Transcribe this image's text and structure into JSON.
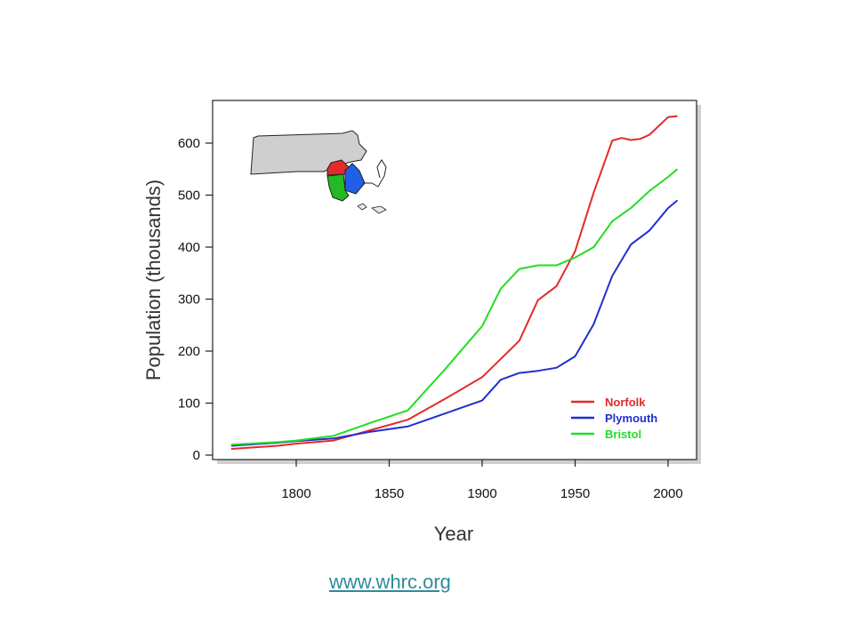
{
  "chart_data": {
    "type": "line",
    "xlabel": "Year",
    "ylabel": "Population (thousands)",
    "xlim": [
      1760,
      2010
    ],
    "ylim": [
      0,
      650
    ],
    "xticks": [
      1800,
      1850,
      1900,
      1950,
      2000
    ],
    "yticks": [
      0,
      100,
      200,
      300,
      400,
      500,
      600
    ],
    "grid": false,
    "legend_position": "bottom-right",
    "series": [
      {
        "name": "Norfolk",
        "color": "#e32a2a",
        "points": [
          [
            1765,
            12
          ],
          [
            1790,
            18
          ],
          [
            1800,
            22
          ],
          [
            1820,
            28
          ],
          [
            1840,
            48
          ],
          [
            1860,
            68
          ],
          [
            1880,
            108
          ],
          [
            1900,
            150
          ],
          [
            1910,
            185
          ],
          [
            1920,
            220
          ],
          [
            1930,
            298
          ],
          [
            1940,
            325
          ],
          [
            1950,
            392
          ],
          [
            1960,
            505
          ],
          [
            1970,
            605
          ],
          [
            1975,
            610
          ],
          [
            1980,
            606
          ],
          [
            1985,
            608
          ],
          [
            1990,
            616
          ],
          [
            2000,
            650
          ],
          [
            2005,
            652
          ]
        ]
      },
      {
        "name": "Plymouth",
        "color": "#1f2fd1",
        "points": [
          [
            1765,
            18
          ],
          [
            1790,
            24
          ],
          [
            1800,
            27
          ],
          [
            1820,
            32
          ],
          [
            1840,
            45
          ],
          [
            1860,
            55
          ],
          [
            1880,
            80
          ],
          [
            1900,
            105
          ],
          [
            1910,
            145
          ],
          [
            1920,
            158
          ],
          [
            1930,
            162
          ],
          [
            1940,
            168
          ],
          [
            1950,
            190
          ],
          [
            1960,
            252
          ],
          [
            1970,
            345
          ],
          [
            1980,
            405
          ],
          [
            1990,
            432
          ],
          [
            2000,
            475
          ],
          [
            2005,
            490
          ]
        ]
      },
      {
        "name": "Bristol",
        "color": "#22dd22",
        "points": [
          [
            1765,
            20
          ],
          [
            1790,
            25
          ],
          [
            1800,
            28
          ],
          [
            1820,
            37
          ],
          [
            1840,
            62
          ],
          [
            1860,
            86
          ],
          [
            1880,
            165
          ],
          [
            1900,
            248
          ],
          [
            1910,
            320
          ],
          [
            1920,
            358
          ],
          [
            1930,
            365
          ],
          [
            1940,
            365
          ],
          [
            1950,
            380
          ],
          [
            1960,
            400
          ],
          [
            1970,
            450
          ],
          [
            1980,
            475
          ],
          [
            1990,
            508
          ],
          [
            2000,
            535
          ],
          [
            2005,
            550
          ]
        ]
      }
    ]
  },
  "source": {
    "link_text": "www.whrc.org"
  }
}
